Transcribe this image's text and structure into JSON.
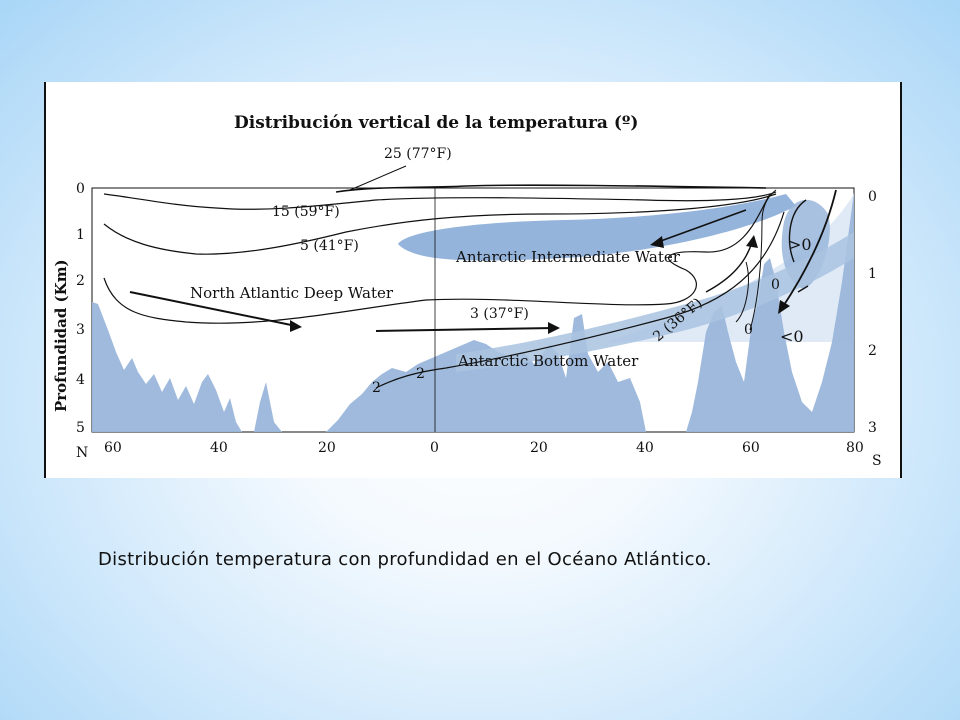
{
  "figure": {
    "title": "Distribución vertical de la temperatura (º)",
    "ylabel": "Profundidad (Km)",
    "left_axis_ticks": [
      "0",
      "1",
      "2",
      "3",
      "4",
      "5"
    ],
    "right_axis_ticks": [
      "0",
      "1",
      "2",
      "3"
    ],
    "x_ticks": [
      "60",
      "40",
      "20",
      "0",
      "20",
      "40",
      "60",
      "80"
    ],
    "x_left_end": "N",
    "x_right_end": "S",
    "isotherms": {
      "t25": "25 (77°F)",
      "t15": "15 (59°F)",
      "t5": "5 (41°F)",
      "t3": "3 (37°F)",
      "t2": "2 (36°F)",
      "t2_a": "2",
      "t2_b": "2",
      "t0": "0",
      "t0_b": "0"
    },
    "water_masses": {
      "naw": "North Atlantic Deep Water",
      "aiw": "Antarctic Intermediate Water",
      "abw": "Antarctic Bottom Water"
    },
    "vortex_upper": ">0",
    "vortex_lower": "<0",
    "colors": {
      "water_mass": "#a9c3e1",
      "intermediate": "#8fb0d9",
      "seafloor": "#9ab6da",
      "line": "#111111"
    }
  },
  "caption": "Distribución temperatura con profundidad en el Océano Atlántico."
}
